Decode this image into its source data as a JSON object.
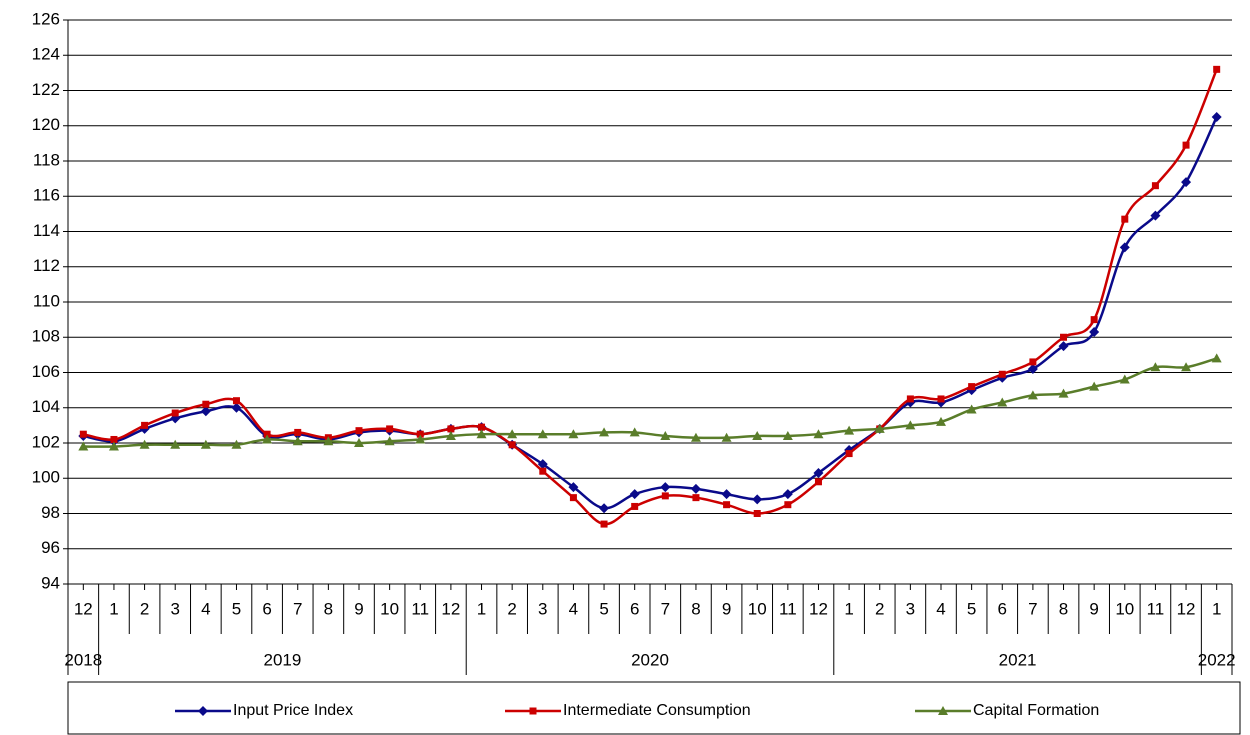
{
  "chart_data": {
    "type": "line",
    "categories": [
      "12",
      "1",
      "2",
      "3",
      "4",
      "5",
      "6",
      "7",
      "8",
      "9",
      "10",
      "11",
      "12",
      "1",
      "2",
      "3",
      "4",
      "5",
      "6",
      "7",
      "8",
      "9",
      "10",
      "11",
      "12",
      "1",
      "2",
      "3",
      "4",
      "5",
      "6",
      "7",
      "8",
      "9",
      "10",
      "11",
      "12",
      "1"
    ],
    "year_groups": [
      {
        "label": "2018",
        "months": 1
      },
      {
        "label": "2019",
        "months": 12
      },
      {
        "label": "2020",
        "months": 12
      },
      {
        "label": "2021",
        "months": 12
      },
      {
        "label": "2022",
        "months": 1
      }
    ],
    "series": [
      {
        "name": "Input Price Index",
        "color": "#0a0a8a",
        "marker": "diamond",
        "values": [
          102.4,
          102.1,
          102.8,
          103.4,
          103.8,
          104.0,
          102.4,
          102.5,
          102.2,
          102.6,
          102.7,
          102.5,
          102.8,
          102.9,
          101.9,
          100.8,
          99.5,
          98.3,
          99.1,
          99.5,
          99.4,
          99.1,
          98.8,
          99.1,
          100.3,
          101.6,
          102.8,
          104.3,
          104.3,
          105.0,
          105.7,
          106.2,
          107.5,
          108.3,
          113.1,
          114.9,
          116.8,
          120.5
        ]
      },
      {
        "name": "Intermediate Consumption",
        "color": "#cc0000",
        "marker": "square",
        "values": [
          102.5,
          102.2,
          103.0,
          103.7,
          104.2,
          104.4,
          102.5,
          102.6,
          102.3,
          102.7,
          102.8,
          102.5,
          102.8,
          102.9,
          101.9,
          100.4,
          98.9,
          97.4,
          98.4,
          99.0,
          98.9,
          98.5,
          98.0,
          98.5,
          99.8,
          101.4,
          102.8,
          104.5,
          104.5,
          105.2,
          105.9,
          106.6,
          108.0,
          109.0,
          114.7,
          116.6,
          118.9,
          123.2
        ]
      },
      {
        "name": "Capital Formation",
        "color": "#5a7d2a",
        "marker": "triangle",
        "values": [
          101.8,
          101.8,
          101.9,
          101.9,
          101.9,
          101.9,
          102.2,
          102.1,
          102.1,
          102.0,
          102.1,
          102.2,
          102.4,
          102.5,
          102.5,
          102.5,
          102.5,
          102.6,
          102.6,
          102.4,
          102.3,
          102.3,
          102.4,
          102.4,
          102.5,
          102.7,
          102.8,
          103.0,
          103.2,
          103.9,
          104.3,
          104.7,
          104.8,
          105.2,
          105.6,
          106.3,
          106.3,
          106.8
        ]
      }
    ],
    "ylim": [
      94,
      126
    ],
    "yticks": [
      94,
      96,
      98,
      100,
      102,
      104,
      106,
      108,
      110,
      112,
      114,
      116,
      118,
      120,
      122,
      124,
      126
    ],
    "grid": true,
    "legend": "bottom"
  }
}
